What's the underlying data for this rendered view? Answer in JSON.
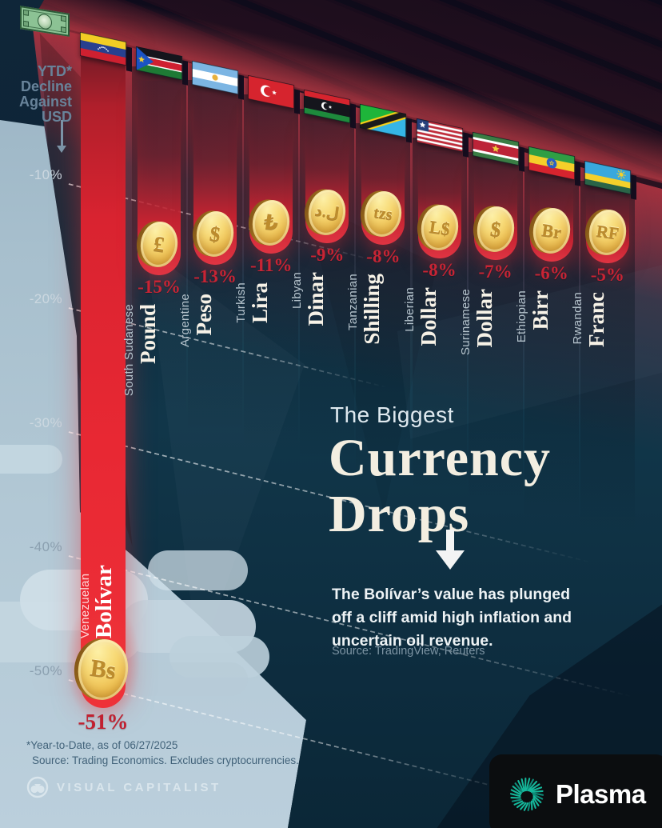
{
  "axis": {
    "note_lines": [
      "YTD*",
      "Decline",
      "Against",
      "USD"
    ],
    "ticks": [
      "-10%",
      "-20%",
      "-30%",
      "-40%",
      "-50%"
    ]
  },
  "chart_data": {
    "type": "bar",
    "title": "The Biggest Currency Drops",
    "subtitle": "The Bolívar's value has plunged off a cliff amid high inflation and uncertain oil revenue.",
    "unit": "YTD % decline against USD",
    "categories": [
      "Venezuelan Bolívar",
      "South Sudanese Pound",
      "Argentine Peso",
      "Turkish Lira",
      "Libyan Dinar",
      "Tanzanian Shilling",
      "Liberian Dollar",
      "Surinamese Dollar",
      "Ethiopian Birr",
      "Rwandan Franc"
    ],
    "values": [
      -51,
      -15,
      -13,
      -11,
      -9,
      -8,
      -8,
      -7,
      -6,
      -5
    ],
    "items": [
      {
        "country": "Venezuelan",
        "currency": "Bolívar",
        "symbol": "Bs",
        "pct": -51,
        "flag": "venezuela"
      },
      {
        "country": "South Sudanese",
        "currency": "Pound",
        "symbol": "£",
        "pct": -15,
        "flag": "south-sudan"
      },
      {
        "country": "Argentine",
        "currency": "Peso",
        "symbol": "$",
        "pct": -13,
        "flag": "argentina"
      },
      {
        "country": "Turkish",
        "currency": "Lira",
        "symbol": "₺",
        "pct": -11,
        "flag": "turkey"
      },
      {
        "country": "Libyan",
        "currency": "Dinar",
        "symbol": "ل.د",
        "pct": -9,
        "flag": "libya"
      },
      {
        "country": "Tanzanian",
        "currency": "Shilling",
        "symbol": "tzs",
        "pct": -8,
        "flag": "tanzania"
      },
      {
        "country": "Liberian",
        "currency": "Dollar",
        "symbol": "L$",
        "pct": -8,
        "flag": "liberia"
      },
      {
        "country": "Surinamese",
        "currency": "Dollar",
        "symbol": "$",
        "pct": -7,
        "flag": "suriname"
      },
      {
        "country": "Ethiopian",
        "currency": "Birr",
        "symbol": "Br",
        "pct": -6,
        "flag": "ethiopia"
      },
      {
        "country": "Rwandan",
        "currency": "Franc",
        "symbol": "RF",
        "pct": -5,
        "flag": "rwanda"
      }
    ],
    "legend_position": "none",
    "grid": "dashed-horizontal"
  },
  "title_block": {
    "kicker": "The Biggest",
    "line1": "Currency",
    "line2": "Drops",
    "description": "The Bolívar’s value has plunged off a cliff amid high inflation and uncertain oil revenue.",
    "source": "Source: TradingView, Reuters"
  },
  "footnote": {
    "line1": "*Year-to-Date, as of 06/27/2025",
    "line2": "Source: Trading Economics. Excludes cryptocurrencies."
  },
  "branding": {
    "visual_capitalist": "VISUAL CAPITALIST",
    "partner": "Plasma"
  },
  "colors": {
    "accent_red": "#d8222f",
    "coin_gold": "#eebe4f",
    "cliff_teal": "#11364a",
    "sky_blue": "#a9c0cf",
    "ceiling_maroon": "#5e2130",
    "brand_teal": "#15b79b"
  }
}
